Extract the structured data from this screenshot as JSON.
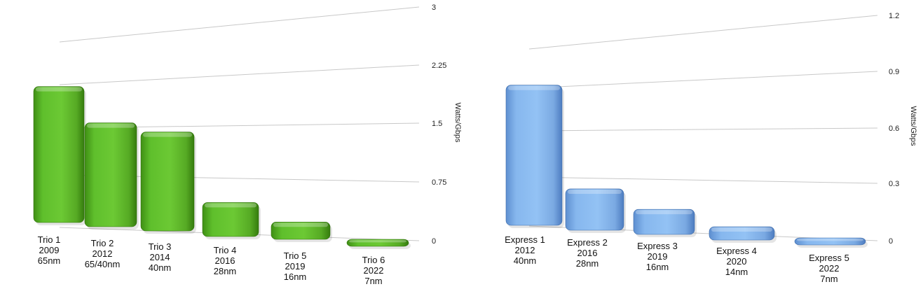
{
  "chart_data": [
    {
      "type": "bar",
      "categories": [
        [
          "Trio 1",
          "2009",
          "65nm"
        ],
        [
          "Trio 2",
          "2012",
          "65/40nm"
        ],
        [
          "Trio 3",
          "2014",
          "40nm"
        ],
        [
          "Trio 4",
          "2016",
          "28nm"
        ],
        [
          "Trio 5",
          "2019",
          "16nm"
        ],
        [
          "Trio 6",
          "2022",
          "7nm"
        ]
      ],
      "values": [
        2.2,
        1.68,
        1.6,
        0.55,
        0.28,
        0.07
      ],
      "ylabel": "Watts/Gbps",
      "ylim": [
        0,
        3
      ],
      "yticks": [
        "0",
        "0.75",
        "1.5",
        "2.25",
        "3"
      ],
      "color": "#5dbb2b",
      "grid": true
    },
    {
      "type": "bar",
      "categories": [
        [
          "Express 1",
          "2012",
          "40nm"
        ],
        [
          "Express 2",
          "2016",
          "28nm"
        ],
        [
          "Express 3",
          "2019",
          "16nm"
        ],
        [
          "Express 4",
          "2020",
          "14nm"
        ],
        [
          "Express 5",
          "2022",
          "7nm"
        ]
      ],
      "values": [
        0.95,
        0.28,
        0.17,
        0.09,
        0.04
      ],
      "ylabel": "Watts/Gbps",
      "ylim": [
        0,
        1.2
      ],
      "yticks": [
        "0",
        "0.3",
        "0.6",
        "0.9",
        "1.2"
      ],
      "color": "#8ab9ec",
      "grid": true
    }
  ]
}
